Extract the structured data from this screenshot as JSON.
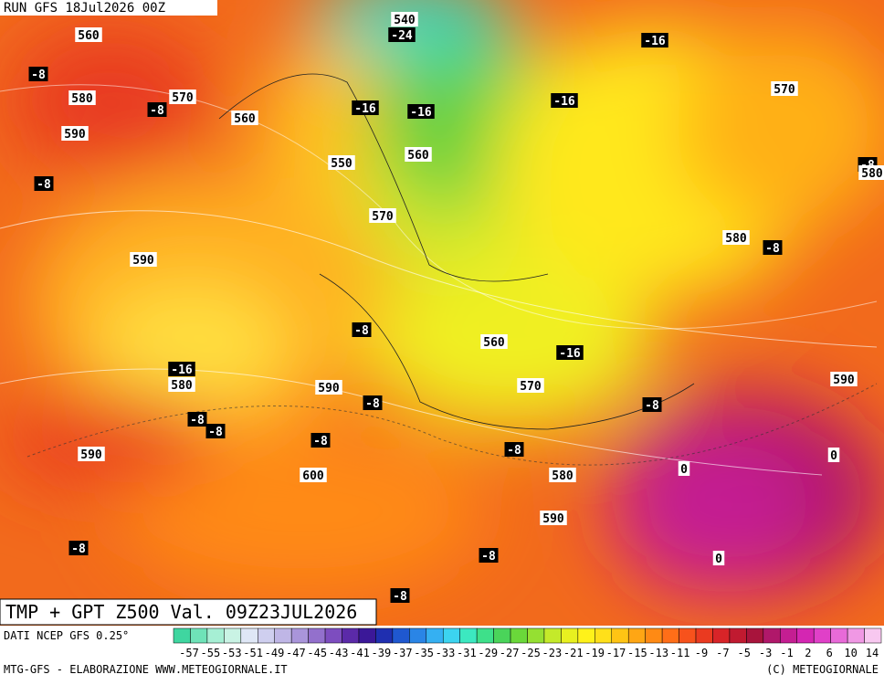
{
  "header": {
    "run": "RUN GFS 18Jul2026 00Z"
  },
  "map": {
    "title": "TMP + GPT Z500 Val. 09Z23JUL2026",
    "labels": [
      "560",
      "-8",
      "580",
      "570",
      "-8",
      "590",
      "560",
      "550",
      "-8",
      "540",
      "-24",
      "-16",
      "-16",
      "560",
      "570",
      "-16",
      "-16",
      "570",
      "-8",
      "580",
      "580",
      "-8",
      "590",
      "-8",
      "560",
      "-16",
      "-16",
      "580",
      "590",
      "570",
      "-8",
      "-8",
      "590",
      "-8",
      "-8",
      "-8",
      "590",
      "-8",
      "0",
      "600",
      "0",
      "580",
      "590",
      "-8",
      "-8",
      "0",
      "-8"
    ]
  },
  "footer": {
    "source": "DATI NCEP GFS 0.25°",
    "credit": "MTG-GFS - ELABORAZIONE WWW.METEOGIORNALE.IT",
    "copyright": "(C) METEOGIORNALE"
  },
  "scale": {
    "labels": [
      "-57",
      "-55",
      "-53",
      "-51",
      "-49",
      "-47",
      "-45",
      "-43",
      "-41",
      "-39",
      "-37",
      "-35",
      "-33",
      "-31",
      "-29",
      "-27",
      "-25",
      "-23",
      "-21",
      "-19",
      "-17",
      "-15",
      "-13",
      "-11",
      "-9",
      "-7",
      "-5",
      "-3",
      "-1",
      "2",
      "6",
      "10",
      "14"
    ],
    "colors": [
      "#3fd6a0",
      "#6fe3b8",
      "#a6efd4",
      "#c9f3e4",
      "#dfe7f6",
      "#cfcfef",
      "#bfb6e6",
      "#a995da",
      "#9370cc",
      "#7d4dbf",
      "#5b2aa8",
      "#3b1898",
      "#1f2fb0",
      "#1f58d0",
      "#2a85e6",
      "#35b0f2",
      "#3cd4f0",
      "#3ce8c0",
      "#3ee08a",
      "#4ad45a",
      "#6ad83a",
      "#95e032",
      "#c4ea2a",
      "#e8f020",
      "#fff21a",
      "#ffe01a",
      "#ffc414",
      "#ffa614",
      "#ff8a14",
      "#ff6e18",
      "#f7521c",
      "#ea3a20",
      "#d82428",
      "#c01a30",
      "#a8143c",
      "#b0186a",
      "#c41e92",
      "#d426b2",
      "#e040c8",
      "#e86ad8",
      "#f098e4",
      "#f8c8f0"
    ]
  }
}
